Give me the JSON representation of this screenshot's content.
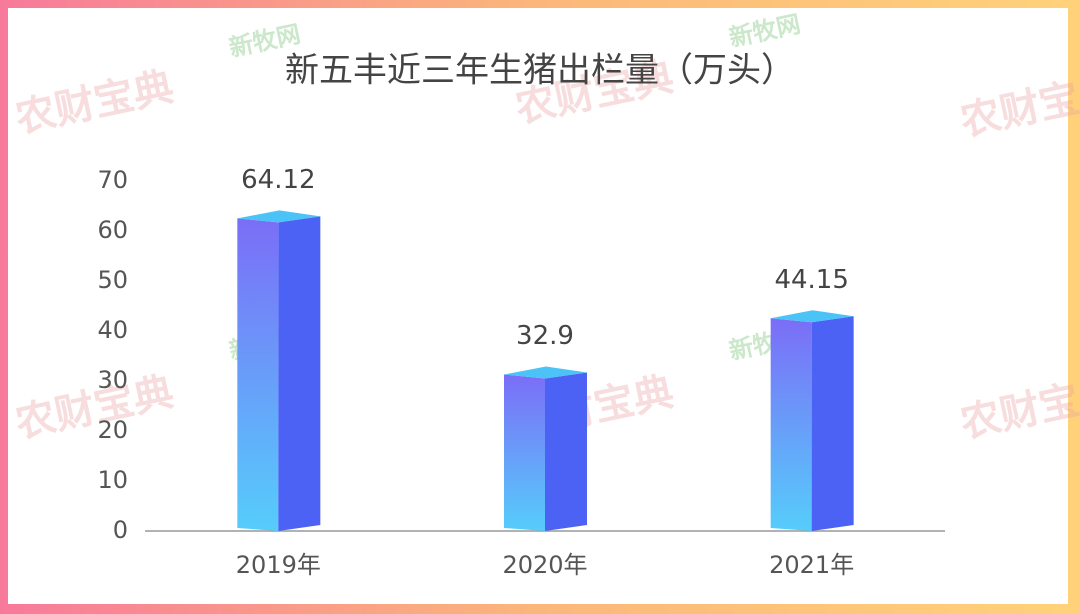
{
  "chart_data": {
    "type": "bar3d",
    "title": "新五丰近三年生猪出栏量（万头）",
    "categories": [
      "2019年",
      "2020年",
      "2021年"
    ],
    "values": [
      64.12,
      32.9,
      44.15
    ],
    "ylim": [
      0,
      70
    ],
    "yticks": [
      0,
      10,
      20,
      30,
      40,
      50,
      60,
      70
    ],
    "colors": {
      "front_top": "#7b6df7",
      "front_bottom": "#56cdfb",
      "side": "#4c62f4",
      "top": "#4cc3f7"
    },
    "watermarks": [
      "农财宝典",
      "新牧网"
    ]
  }
}
